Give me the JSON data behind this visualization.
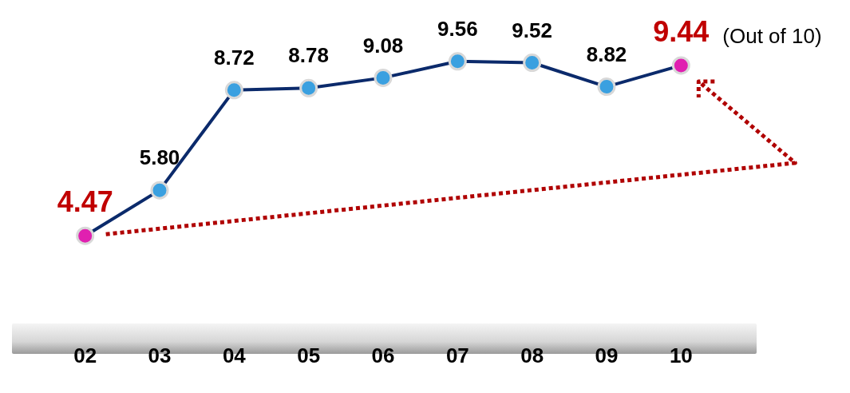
{
  "chart_data": {
    "type": "line",
    "categories": [
      "02",
      "03",
      "04",
      "05",
      "06",
      "07",
      "08",
      "09",
      "10"
    ],
    "series": [
      {
        "color": "#0b2a6b",
        "colors": [
          "#e020b0",
          "#3aa0e0",
          "#3aa0e0",
          "#3aa0e0",
          "#3aa0e0",
          "#3aa0e0",
          "#3aa0e0",
          "#3aa0e0",
          "#e020b0"
        ],
        "values": [
          4.47,
          5.8,
          8.72,
          8.78,
          9.08,
          9.56,
          9.52,
          8.82,
          9.44
        ],
        "value_labels": [
          "4.47",
          "5.80",
          "8.72",
          "8.78",
          "9.08",
          "9.56",
          "9.52",
          "8.82",
          "9.44"
        ]
      }
    ],
    "marker": "circle",
    "line_style": "solid",
    "grid": false,
    "legend": false,
    "tick_labels": "x",
    "annotations": [
      {
        "text": "(Out of 10)",
        "x": "10",
        "y": 9.44
      }
    ]
  }
}
